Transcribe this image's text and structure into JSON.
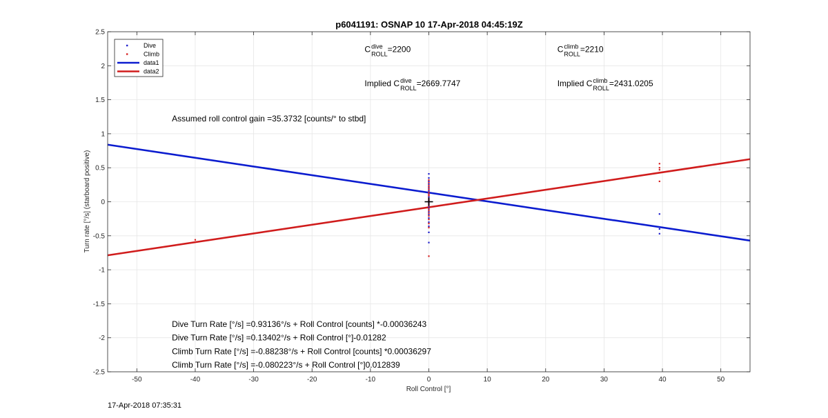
{
  "chart_data": {
    "type": "scatter",
    "title": "p6041191: OSNAP 10 17-Apr-2018 04:45:19Z",
    "xlabel": "Roll Control [°]",
    "ylabel": "Turn rate [°/s] (starboard positive)",
    "xlim": [
      -55,
      55
    ],
    "ylim": [
      -2.5,
      2.5
    ],
    "xticks": [
      -50,
      -40,
      -30,
      -20,
      -10,
      0,
      10,
      20,
      30,
      40,
      50
    ],
    "yticks": [
      -2.5,
      -2,
      -1.5,
      -1,
      -0.5,
      0,
      0.5,
      1,
      1.5,
      2,
      2.5
    ],
    "grid": true,
    "legend_position": "top-left",
    "legend": [
      "Dive",
      "Climb",
      "data1",
      "data2"
    ],
    "series": [
      {
        "name": "Dive",
        "kind": "points",
        "color": "#1f1fcc",
        "points": [
          [
            0,
            0.41
          ],
          [
            0,
            0.35
          ],
          [
            0,
            0.3
          ],
          [
            0,
            0.26
          ],
          [
            0,
            0.22
          ],
          [
            0,
            0.2
          ],
          [
            0,
            0.17
          ],
          [
            0,
            0.15
          ],
          [
            0,
            0.12
          ],
          [
            0,
            0.1
          ],
          [
            0,
            0.08
          ],
          [
            0,
            0.06
          ],
          [
            0,
            0.03
          ],
          [
            0,
            0.01
          ],
          [
            0,
            -0.02
          ],
          [
            0,
            -0.05
          ],
          [
            0,
            -0.08
          ],
          [
            0,
            -0.11
          ],
          [
            0,
            -0.15
          ],
          [
            0,
            -0.19
          ],
          [
            0,
            -0.24
          ],
          [
            0,
            -0.3
          ],
          [
            0,
            -0.36
          ],
          [
            0,
            -0.45
          ],
          [
            0,
            -0.6
          ],
          [
            39.5,
            -0.18
          ],
          [
            39.5,
            -0.4
          ],
          [
            39.5,
            -0.47
          ]
        ]
      },
      {
        "name": "Climb",
        "kind": "points",
        "color": "#d62020",
        "points": [
          [
            0,
            0.32
          ],
          [
            0,
            0.28
          ],
          [
            0,
            0.24
          ],
          [
            0,
            0.21
          ],
          [
            0,
            0.18
          ],
          [
            0,
            0.14
          ],
          [
            0,
            0.11
          ],
          [
            0,
            0.09
          ],
          [
            0,
            0.05
          ],
          [
            0,
            0.02
          ],
          [
            0,
            0.0
          ],
          [
            0,
            -0.03
          ],
          [
            0,
            -0.06
          ],
          [
            0,
            -0.1
          ],
          [
            0,
            -0.13
          ],
          [
            0,
            -0.17
          ],
          [
            0,
            -0.21
          ],
          [
            0,
            -0.26
          ],
          [
            0,
            -0.32
          ],
          [
            0,
            -0.38
          ],
          [
            0,
            -0.8
          ],
          [
            -40,
            -0.56
          ],
          [
            39.5,
            0.56
          ],
          [
            39.5,
            0.5
          ],
          [
            39.5,
            0.47
          ],
          [
            39.5,
            0.43
          ],
          [
            39.5,
            0.3
          ]
        ]
      },
      {
        "name": "data1",
        "kind": "line",
        "color": "#0b1ccf",
        "points": [
          [
            -55,
            0.839
          ],
          [
            55,
            -0.571
          ]
        ]
      },
      {
        "name": "data2",
        "kind": "line",
        "color": "#d01c1c",
        "points": [
          [
            -55,
            -0.787
          ],
          [
            55,
            0.626
          ]
        ]
      }
    ],
    "marker": {
      "kind": "plus",
      "x": 0,
      "y": 0,
      "color": "#000000"
    },
    "annotations": [
      {
        "sym": "C",
        "sup": "dive",
        "sub": "ROLL",
        "suffix": " =2200",
        "prefix": "",
        "x": -11,
        "y": 2.2
      },
      {
        "sym": "C",
        "sup": "climb",
        "sub": "ROLL",
        "suffix": " =2210",
        "prefix": "",
        "x": 22,
        "y": 2.2
      },
      {
        "sym": "C",
        "sup": "dive",
        "sub": "ROLL",
        "suffix": " =2669.7747",
        "prefix": "Implied ",
        "x": -11,
        "y": 1.7
      },
      {
        "sym": "C",
        "sup": "climb",
        "sub": "ROLL",
        "suffix": " =2431.0205",
        "prefix": "Implied ",
        "x": 22,
        "y": 1.7
      }
    ],
    "text_annotations": [
      {
        "text": "Assumed roll control gain =35.3732 [counts/° to stbd]",
        "x": -44,
        "y": 1.22
      },
      {
        "text": "Dive Turn Rate [°/s] =0.93136°/s + Roll Control [counts] *-0.00036243",
        "x": -44,
        "y": -1.8
      },
      {
        "text": "Dive Turn Rate [°/s] =0.13402°/s + Roll Control [°]-0.01282",
        "x": -44,
        "y": -2.0
      },
      {
        "text": "Climb Turn Rate [°/s] =-0.88238°/s + Roll Control [counts] *0.00036297",
        "x": -44,
        "y": -2.2
      },
      {
        "text": "Climb Turn Rate [°/s] =-0.080223°/s + Roll Control [°]0.012839",
        "x": -44,
        "y": -2.4
      }
    ]
  },
  "footer": {
    "timestamp": "17-Apr-2018 07:35:31"
  }
}
